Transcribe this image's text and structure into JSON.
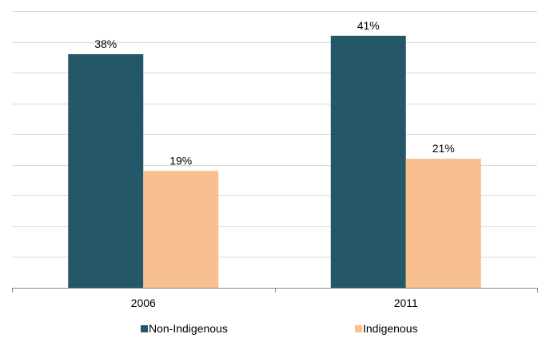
{
  "chart_data": {
    "type": "bar",
    "categories": [
      "2006",
      "2011"
    ],
    "series": [
      {
        "name": "Non-Indigenous",
        "values": [
          38,
          41
        ],
        "labels": [
          "38%",
          "41%"
        ],
        "color": "#245767"
      },
      {
        "name": "Indigenous",
        "values": [
          19,
          21
        ],
        "labels": [
          "19%",
          "21%"
        ],
        "color": "#F8C08F"
      }
    ],
    "title": "",
    "xlabel": "",
    "ylabel": "",
    "ylim": [
      0,
      45
    ],
    "grid": true,
    "axis_color": "#888888",
    "grid_color": "#D9D9D9",
    "legend_position": "bottom"
  }
}
